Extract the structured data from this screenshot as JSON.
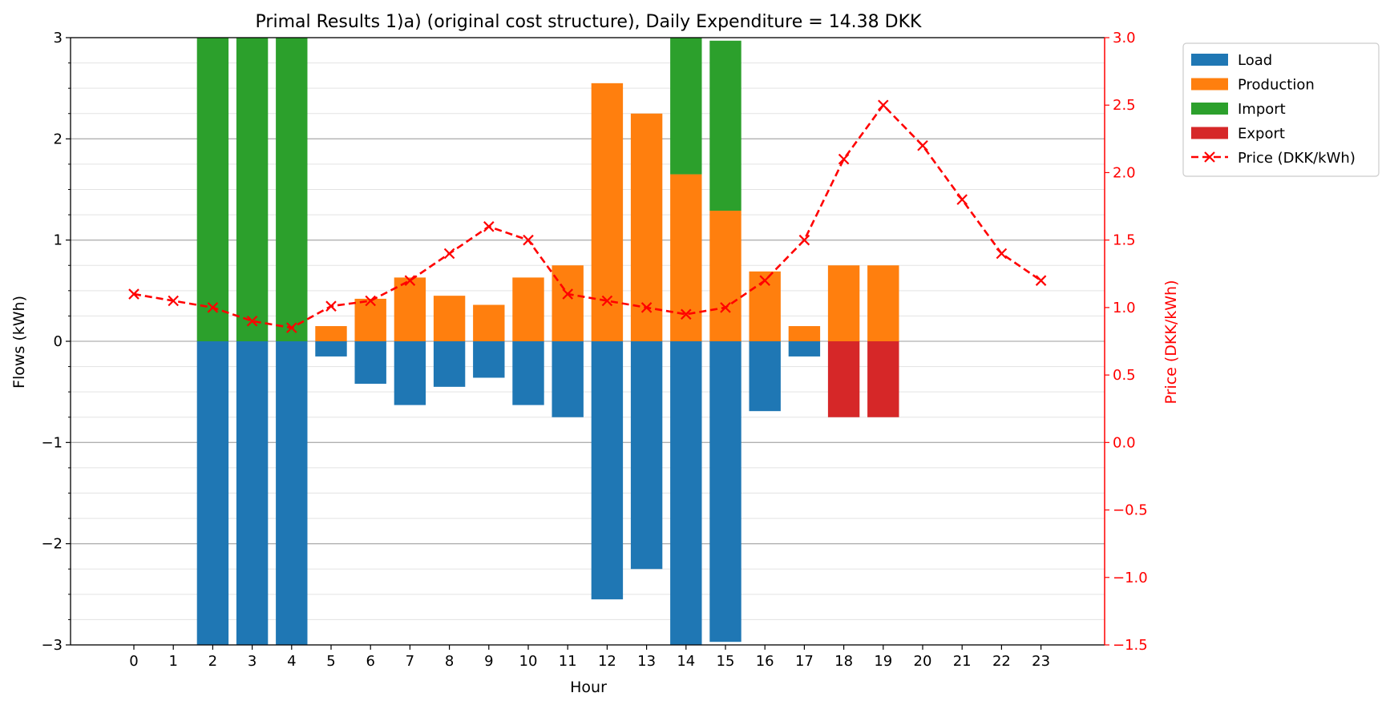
{
  "chart_data": {
    "type": "bar",
    "title": "Primal Results 1)a) (original cost structure), Daily Expenditure = 14.38 DKK",
    "xlabel": "Hour",
    "ylabel": "Flows (kWh)",
    "y2label": "Price (DKK/kWh)",
    "ylim": [
      -3,
      3
    ],
    "y2lim": [
      -1.5,
      3.0
    ],
    "yticks": [
      "−3",
      "−2",
      "−1",
      "0",
      "1",
      "2",
      "3"
    ],
    "y2ticks": [
      "−1.5",
      "−1.0",
      "−0.5",
      "0.0",
      "0.5",
      "1.0",
      "1.5",
      "2.0",
      "2.5",
      "3.0"
    ],
    "grid": "horizontal, major and minor",
    "legend_position": "outside-top-right",
    "categories": [
      "0",
      "1",
      "2",
      "3",
      "4",
      "5",
      "6",
      "7",
      "8",
      "9",
      "10",
      "11",
      "12",
      "13",
      "14",
      "15",
      "16",
      "17",
      "18",
      "19",
      "20",
      "21",
      "22",
      "23"
    ],
    "series": [
      {
        "name": "Load",
        "color": "#1f77b4",
        "kind": "bar",
        "values": [
          0,
          0,
          -3.0,
          -3.0,
          -3.0,
          -0.15,
          -0.42,
          -0.63,
          -0.45,
          -0.36,
          -0.63,
          -0.75,
          -2.55,
          -2.25,
          -3.0,
          -2.97,
          -0.69,
          -0.15,
          0,
          0,
          0,
          0,
          0,
          0
        ]
      },
      {
        "name": "Production",
        "color": "#ff7f0e",
        "kind": "bar",
        "values": [
          0,
          0,
          0,
          0,
          0,
          0.15,
          0.42,
          0.63,
          0.45,
          0.36,
          0.63,
          0.75,
          2.55,
          2.25,
          1.65,
          1.29,
          0.69,
          0.15,
          0.75,
          0.75,
          0,
          0,
          0,
          0
        ]
      },
      {
        "name": "Import",
        "color": "#2ca02c",
        "kind": "bar",
        "values": [
          0,
          0,
          3.0,
          3.0,
          3.0,
          0,
          0,
          0,
          0,
          0,
          0,
          0,
          0,
          0,
          1.35,
          1.68,
          0,
          0,
          0,
          0,
          0,
          0,
          0,
          0
        ]
      },
      {
        "name": "Export",
        "color": "#d62728",
        "kind": "bar",
        "values": [
          0,
          0,
          0,
          0,
          0,
          0,
          0,
          0,
          0,
          0,
          0,
          0,
          0,
          0,
          0,
          0,
          0,
          0,
          -0.75,
          -0.75,
          0,
          0,
          0,
          0
        ]
      },
      {
        "name": "Price (DKK/kWh)",
        "color": "#ff0000",
        "kind": "line",
        "axis": "right",
        "values": [
          1.1,
          1.05,
          1.0,
          0.9,
          0.85,
          1.01,
          1.05,
          1.2,
          1.4,
          1.6,
          1.5,
          1.1,
          1.05,
          1.0,
          0.95,
          1.0,
          1.2,
          1.5,
          2.1,
          2.5,
          2.2,
          1.8,
          1.4,
          1.2
        ]
      }
    ]
  }
}
